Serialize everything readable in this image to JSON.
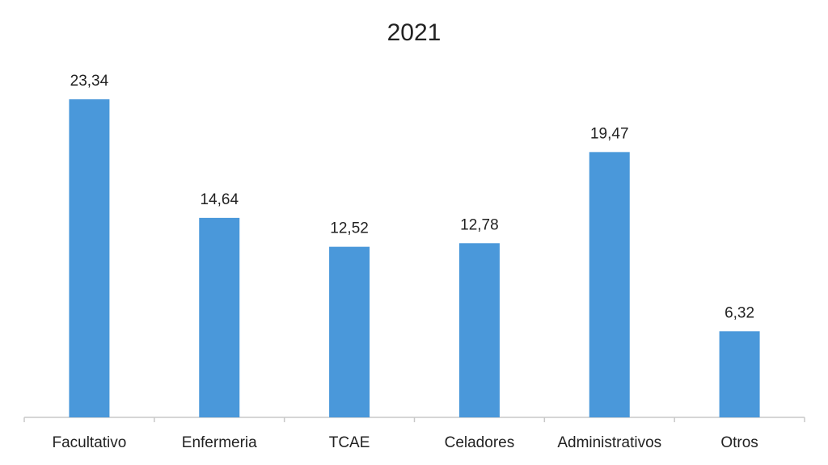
{
  "chart_data": {
    "type": "bar",
    "title": "2021",
    "categories": [
      "Facultativo",
      "Enfermeria",
      "TCAE",
      "Celadores",
      "Administrativos",
      "Otros"
    ],
    "values": [
      23.34,
      14.64,
      12.52,
      12.78,
      19.47,
      6.32
    ],
    "value_labels": [
      "23,34",
      "14,64",
      "12,52",
      "12,78",
      "19,47",
      "6,32"
    ],
    "color": "#4a98da"
  }
}
